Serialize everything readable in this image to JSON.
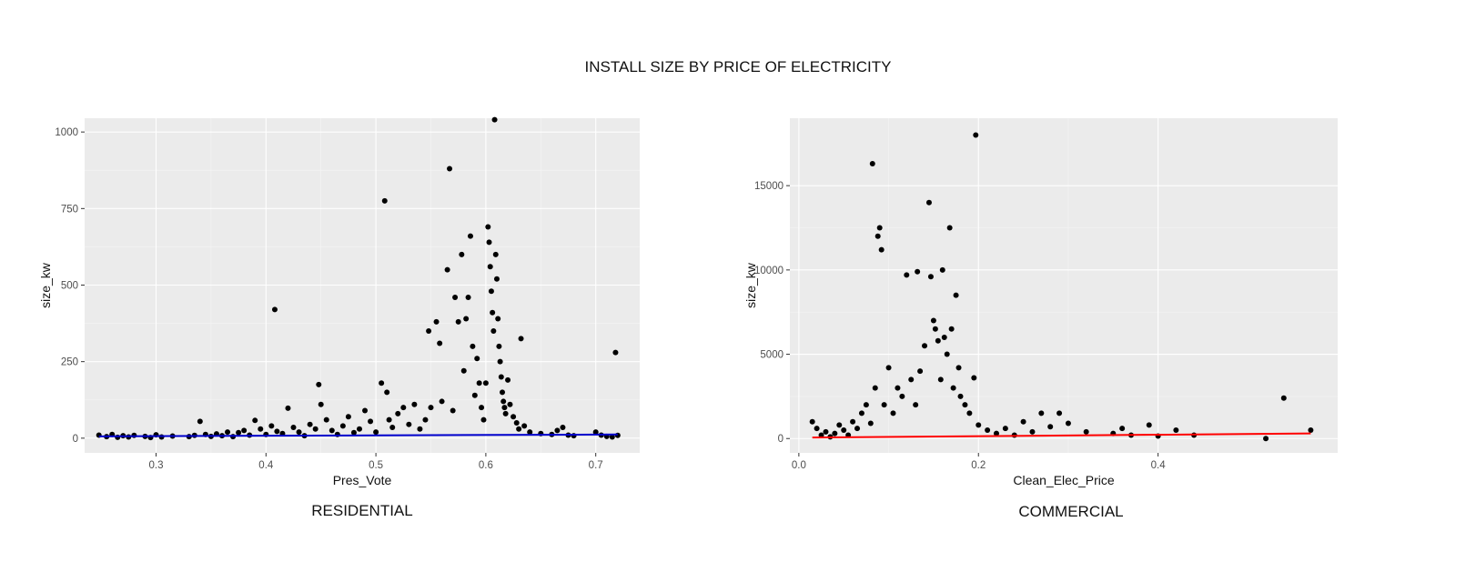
{
  "title": "INSTALL SIZE BY PRICE OF ELECTRICITY",
  "chart_data": [
    {
      "type": "scatter",
      "caption": "RESIDENTIAL",
      "xlabel": "Pres_Vote",
      "ylabel": "size_kw",
      "xlim": [
        0.235,
        0.74
      ],
      "ylim": [
        -48,
        1045
      ],
      "xticks": [
        0.3,
        0.4,
        0.5,
        0.6,
        0.7
      ],
      "xtick_labels": [
        "0.3",
        "0.4",
        "0.5",
        "0.6",
        "0.7"
      ],
      "yticks": [
        0,
        250,
        500,
        750,
        1000
      ],
      "ytick_labels": [
        "0",
        "250",
        "500",
        "750",
        "1000"
      ],
      "grid": true,
      "point_color": "#000000",
      "fit_line": {
        "color": "#0000cc",
        "points": [
          [
            0.248,
            6
          ],
          [
            0.72,
            12
          ]
        ]
      },
      "points": [
        [
          0.248,
          10
        ],
        [
          0.255,
          5
        ],
        [
          0.26,
          12
        ],
        [
          0.265,
          3
        ],
        [
          0.27,
          8
        ],
        [
          0.275,
          4
        ],
        [
          0.28,
          9
        ],
        [
          0.29,
          6
        ],
        [
          0.295,
          2
        ],
        [
          0.3,
          11
        ],
        [
          0.305,
          4
        ],
        [
          0.315,
          7
        ],
        [
          0.33,
          5
        ],
        [
          0.335,
          9
        ],
        [
          0.34,
          55
        ],
        [
          0.345,
          12
        ],
        [
          0.35,
          6
        ],
        [
          0.355,
          14
        ],
        [
          0.36,
          8
        ],
        [
          0.365,
          20
        ],
        [
          0.37,
          5
        ],
        [
          0.375,
          18
        ],
        [
          0.38,
          25
        ],
        [
          0.385,
          10
        ],
        [
          0.39,
          58
        ],
        [
          0.395,
          30
        ],
        [
          0.4,
          12
        ],
        [
          0.405,
          40
        ],
        [
          0.408,
          420
        ],
        [
          0.41,
          22
        ],
        [
          0.415,
          15
        ],
        [
          0.42,
          98
        ],
        [
          0.425,
          35
        ],
        [
          0.43,
          20
        ],
        [
          0.435,
          8
        ],
        [
          0.44,
          45
        ],
        [
          0.445,
          30
        ],
        [
          0.448,
          175
        ],
        [
          0.45,
          110
        ],
        [
          0.455,
          60
        ],
        [
          0.46,
          25
        ],
        [
          0.465,
          12
        ],
        [
          0.47,
          40
        ],
        [
          0.475,
          70
        ],
        [
          0.48,
          18
        ],
        [
          0.485,
          30
        ],
        [
          0.49,
          90
        ],
        [
          0.495,
          55
        ],
        [
          0.5,
          20
        ],
        [
          0.505,
          180
        ],
        [
          0.508,
          775
        ],
        [
          0.51,
          150
        ],
        [
          0.512,
          60
        ],
        [
          0.515,
          35
        ],
        [
          0.52,
          80
        ],
        [
          0.525,
          100
        ],
        [
          0.53,
          45
        ],
        [
          0.535,
          110
        ],
        [
          0.54,
          30
        ],
        [
          0.545,
          60
        ],
        [
          0.548,
          350
        ],
        [
          0.55,
          100
        ],
        [
          0.555,
          380
        ],
        [
          0.558,
          310
        ],
        [
          0.56,
          120
        ],
        [
          0.565,
          550
        ],
        [
          0.567,
          880
        ],
        [
          0.57,
          90
        ],
        [
          0.572,
          460
        ],
        [
          0.575,
          380
        ],
        [
          0.578,
          600
        ],
        [
          0.58,
          220
        ],
        [
          0.582,
          390
        ],
        [
          0.584,
          460
        ],
        [
          0.586,
          660
        ],
        [
          0.588,
          300
        ],
        [
          0.59,
          140
        ],
        [
          0.592,
          260
        ],
        [
          0.594,
          180
        ],
        [
          0.596,
          100
        ],
        [
          0.598,
          60
        ],
        [
          0.6,
          180
        ],
        [
          0.602,
          690
        ],
        [
          0.603,
          640
        ],
        [
          0.604,
          560
        ],
        [
          0.605,
          480
        ],
        [
          0.606,
          410
        ],
        [
          0.607,
          350
        ],
        [
          0.608,
          1040
        ],
        [
          0.609,
          600
        ],
        [
          0.61,
          520
        ],
        [
          0.611,
          390
        ],
        [
          0.612,
          300
        ],
        [
          0.613,
          250
        ],
        [
          0.614,
          200
        ],
        [
          0.615,
          150
        ],
        [
          0.616,
          120
        ],
        [
          0.617,
          100
        ],
        [
          0.618,
          80
        ],
        [
          0.62,
          190
        ],
        [
          0.622,
          110
        ],
        [
          0.625,
          70
        ],
        [
          0.628,
          50
        ],
        [
          0.63,
          30
        ],
        [
          0.632,
          325
        ],
        [
          0.635,
          40
        ],
        [
          0.64,
          20
        ],
        [
          0.65,
          15
        ],
        [
          0.66,
          12
        ],
        [
          0.665,
          25
        ],
        [
          0.67,
          35
        ],
        [
          0.675,
          10
        ],
        [
          0.68,
          8
        ],
        [
          0.7,
          20
        ],
        [
          0.705,
          10
        ],
        [
          0.71,
          6
        ],
        [
          0.715,
          4
        ],
        [
          0.718,
          280
        ],
        [
          0.72,
          9
        ]
      ]
    },
    {
      "type": "scatter",
      "caption": "COMMERCIAL",
      "xlabel": "Clean_Elec_Price",
      "ylabel": "size_kw",
      "xlim": [
        -0.01,
        0.6
      ],
      "ylim": [
        -850,
        19000
      ],
      "xticks": [
        0.0,
        0.2,
        0.4
      ],
      "xtick_labels": [
        "0.0",
        "0.2",
        "0.4"
      ],
      "yticks": [
        0,
        5000,
        10000,
        15000
      ],
      "ytick_labels": [
        "0",
        "5000",
        "10000",
        "15000"
      ],
      "grid": true,
      "point_color": "#000000",
      "fit_line": {
        "color": "#ff0000",
        "points": [
          [
            0.015,
            60
          ],
          [
            0.57,
            300
          ]
        ]
      },
      "points": [
        [
          0.015,
          1000
        ],
        [
          0.02,
          600
        ],
        [
          0.025,
          200
        ],
        [
          0.03,
          400
        ],
        [
          0.035,
          100
        ],
        [
          0.04,
          300
        ],
        [
          0.045,
          800
        ],
        [
          0.05,
          500
        ],
        [
          0.055,
          200
        ],
        [
          0.06,
          1000
        ],
        [
          0.065,
          600
        ],
        [
          0.07,
          1500
        ],
        [
          0.075,
          2000
        ],
        [
          0.08,
          900
        ],
        [
          0.082,
          16300
        ],
        [
          0.085,
          3000
        ],
        [
          0.088,
          12000
        ],
        [
          0.09,
          12500
        ],
        [
          0.092,
          11200
        ],
        [
          0.095,
          2000
        ],
        [
          0.1,
          4200
        ],
        [
          0.105,
          1500
        ],
        [
          0.11,
          3000
        ],
        [
          0.115,
          2500
        ],
        [
          0.12,
          9700
        ],
        [
          0.125,
          3500
        ],
        [
          0.13,
          2000
        ],
        [
          0.132,
          9900
        ],
        [
          0.135,
          4000
        ],
        [
          0.14,
          5500
        ],
        [
          0.145,
          14000
        ],
        [
          0.147,
          9600
        ],
        [
          0.15,
          7000
        ],
        [
          0.152,
          6500
        ],
        [
          0.155,
          5800
        ],
        [
          0.158,
          3500
        ],
        [
          0.16,
          10000
        ],
        [
          0.162,
          6000
        ],
        [
          0.165,
          5000
        ],
        [
          0.168,
          12500
        ],
        [
          0.17,
          6500
        ],
        [
          0.172,
          3000
        ],
        [
          0.175,
          8500
        ],
        [
          0.178,
          4200
        ],
        [
          0.18,
          2500
        ],
        [
          0.185,
          2000
        ],
        [
          0.19,
          1500
        ],
        [
          0.195,
          3600
        ],
        [
          0.197,
          18000
        ],
        [
          0.2,
          800
        ],
        [
          0.21,
          500
        ],
        [
          0.22,
          300
        ],
        [
          0.23,
          600
        ],
        [
          0.24,
          200
        ],
        [
          0.25,
          1000
        ],
        [
          0.26,
          400
        ],
        [
          0.27,
          1500
        ],
        [
          0.28,
          700
        ],
        [
          0.29,
          1500
        ],
        [
          0.3,
          900
        ],
        [
          0.32,
          400
        ],
        [
          0.35,
          300
        ],
        [
          0.36,
          600
        ],
        [
          0.37,
          200
        ],
        [
          0.39,
          800
        ],
        [
          0.4,
          150
        ],
        [
          0.42,
          500
        ],
        [
          0.44,
          200
        ],
        [
          0.52,
          0
        ],
        [
          0.54,
          2400
        ],
        [
          0.57,
          500
        ]
      ]
    }
  ]
}
